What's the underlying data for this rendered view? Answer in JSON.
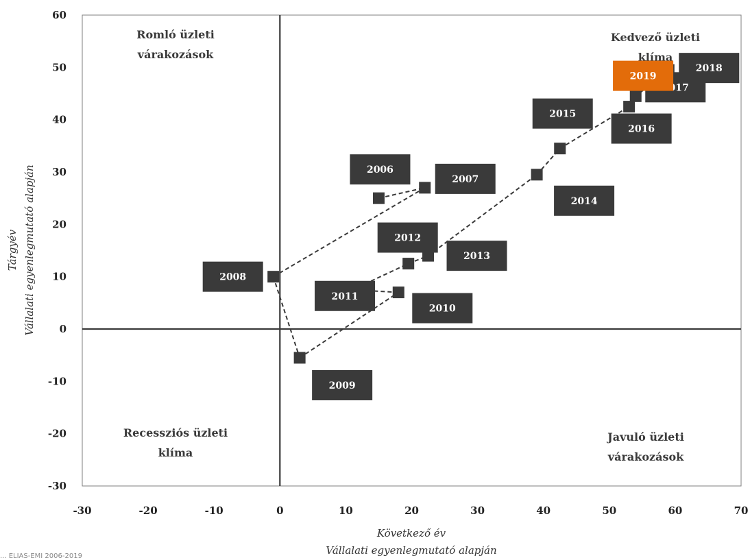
{
  "chart_data": {
    "type": "scatter",
    "title": "",
    "xlabel": [
      "Következő év",
      "Vállalati egyenlegmutató alapján"
    ],
    "ylabel": [
      "Tárgyév",
      "Vállalati egyenlegmutató alapján"
    ],
    "xlim": [
      -30,
      70
    ],
    "ylim": [
      -30,
      60
    ],
    "xticks": [
      -30,
      -20,
      -10,
      0,
      10,
      20,
      30,
      40,
      50,
      60,
      70
    ],
    "yticks": [
      -30,
      -20,
      -10,
      0,
      10,
      20,
      30,
      40,
      50,
      60
    ],
    "grid": false,
    "connected": true,
    "points": [
      {
        "year": "2006",
        "x": 15,
        "y": 25
      },
      {
        "year": "2007",
        "x": 22,
        "y": 27
      },
      {
        "year": "2008",
        "x": -1,
        "y": 10
      },
      {
        "year": "2009",
        "x": 3,
        "y": -5.5
      },
      {
        "year": "2010",
        "x": 18,
        "y": 7
      },
      {
        "year": "2011",
        "x": 11,
        "y": 7.5
      },
      {
        "year": "2012",
        "x": 19.5,
        "y": 12.5
      },
      {
        "year": "2013",
        "x": 22.5,
        "y": 14
      },
      {
        "year": "2014",
        "x": 39,
        "y": 29.5
      },
      {
        "year": "2015",
        "x": 42.5,
        "y": 34.5
      },
      {
        "year": "2016",
        "x": 53,
        "y": 42.5
      },
      {
        "year": "2017",
        "x": 54,
        "y": 44.5
      },
      {
        "year": "2018",
        "x": 59,
        "y": 49.5
      },
      {
        "year": "2019",
        "x": 57,
        "y": 48
      }
    ],
    "quadrant_labels": {
      "top_left": [
        "Romló üzleti",
        "várakozások"
      ],
      "top_right": [
        "Kedvező üzleti",
        "klíma"
      ],
      "bottom_left": [
        "Recessziós üzleti",
        "klíma"
      ],
      "bottom_right": [
        "Javuló üzleti",
        "várakozások"
      ]
    },
    "highlight_year": "2019"
  },
  "colors": {
    "marker": "#3a3a3a",
    "label_bg": "#3a3a3a",
    "highlight": "#e36c0a",
    "axis": "#3a3a3a"
  },
  "footer": "... ELIAS-EMI 2006-2019"
}
